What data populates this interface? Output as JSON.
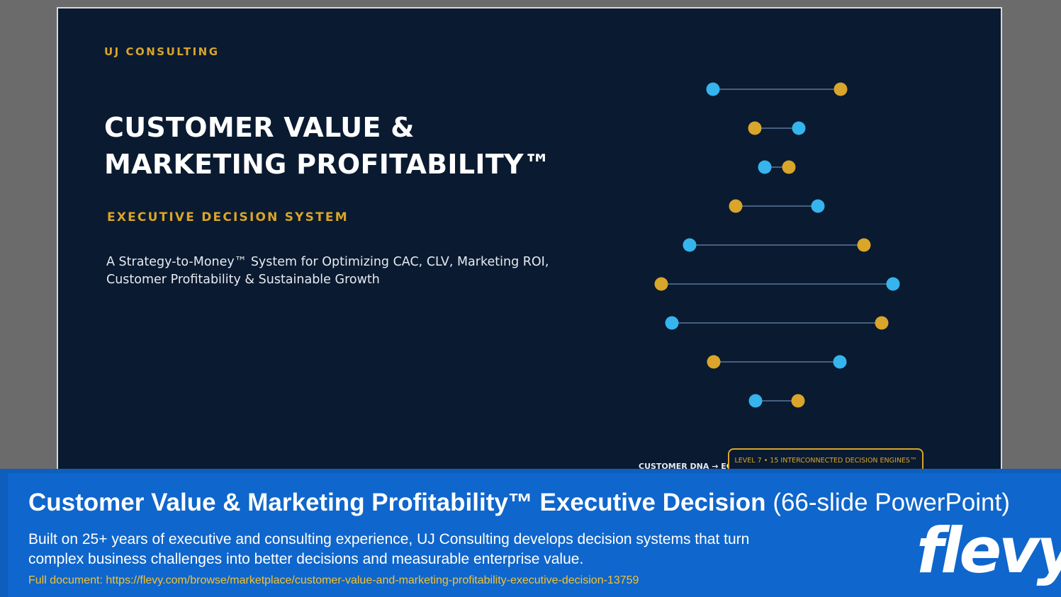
{
  "slide": {
    "brand": "UJ CONSULTING",
    "title_line1": "CUSTOMER VALUE &",
    "title_line2": "MARKETING PROFITABILITY™",
    "subtitle": "EXECUTIVE DECISION SYSTEM",
    "desc_line1": "A Strategy-to-Money™ System for Optimizing CAC, CLV, Marketing ROI,",
    "desc_line2": "Customer Profitability & Sustainable Growth",
    "dna_label": "CUSTOMER DNA → ECO",
    "level_box": "LEVEL 7 •  15 INTERCONNECTED DECISION ENGINES™",
    "colors": {
      "background": "#0a1a30",
      "gold": "#d9a52a",
      "blue": "#35b4ee",
      "connector": "#5a7898"
    }
  },
  "footer": {
    "title_bold": "Customer Value & Marketing Profitability™ Executive Decision",
    "title_light": "(66-slide PowerPoint)",
    "desc": "Built on 25+ years of executive and consulting experience, UJ Consulting develops decision systems that turn complex business challenges into better decisions and measurable enterprise value.",
    "link": "Full document: https://flevy.com/browse/marketplace/customer-value-and-marketing-profitability-executive-decision-13759",
    "logo": "flevy",
    "colors": {
      "background": "#0f66cc",
      "link": "#f2c232"
    }
  }
}
